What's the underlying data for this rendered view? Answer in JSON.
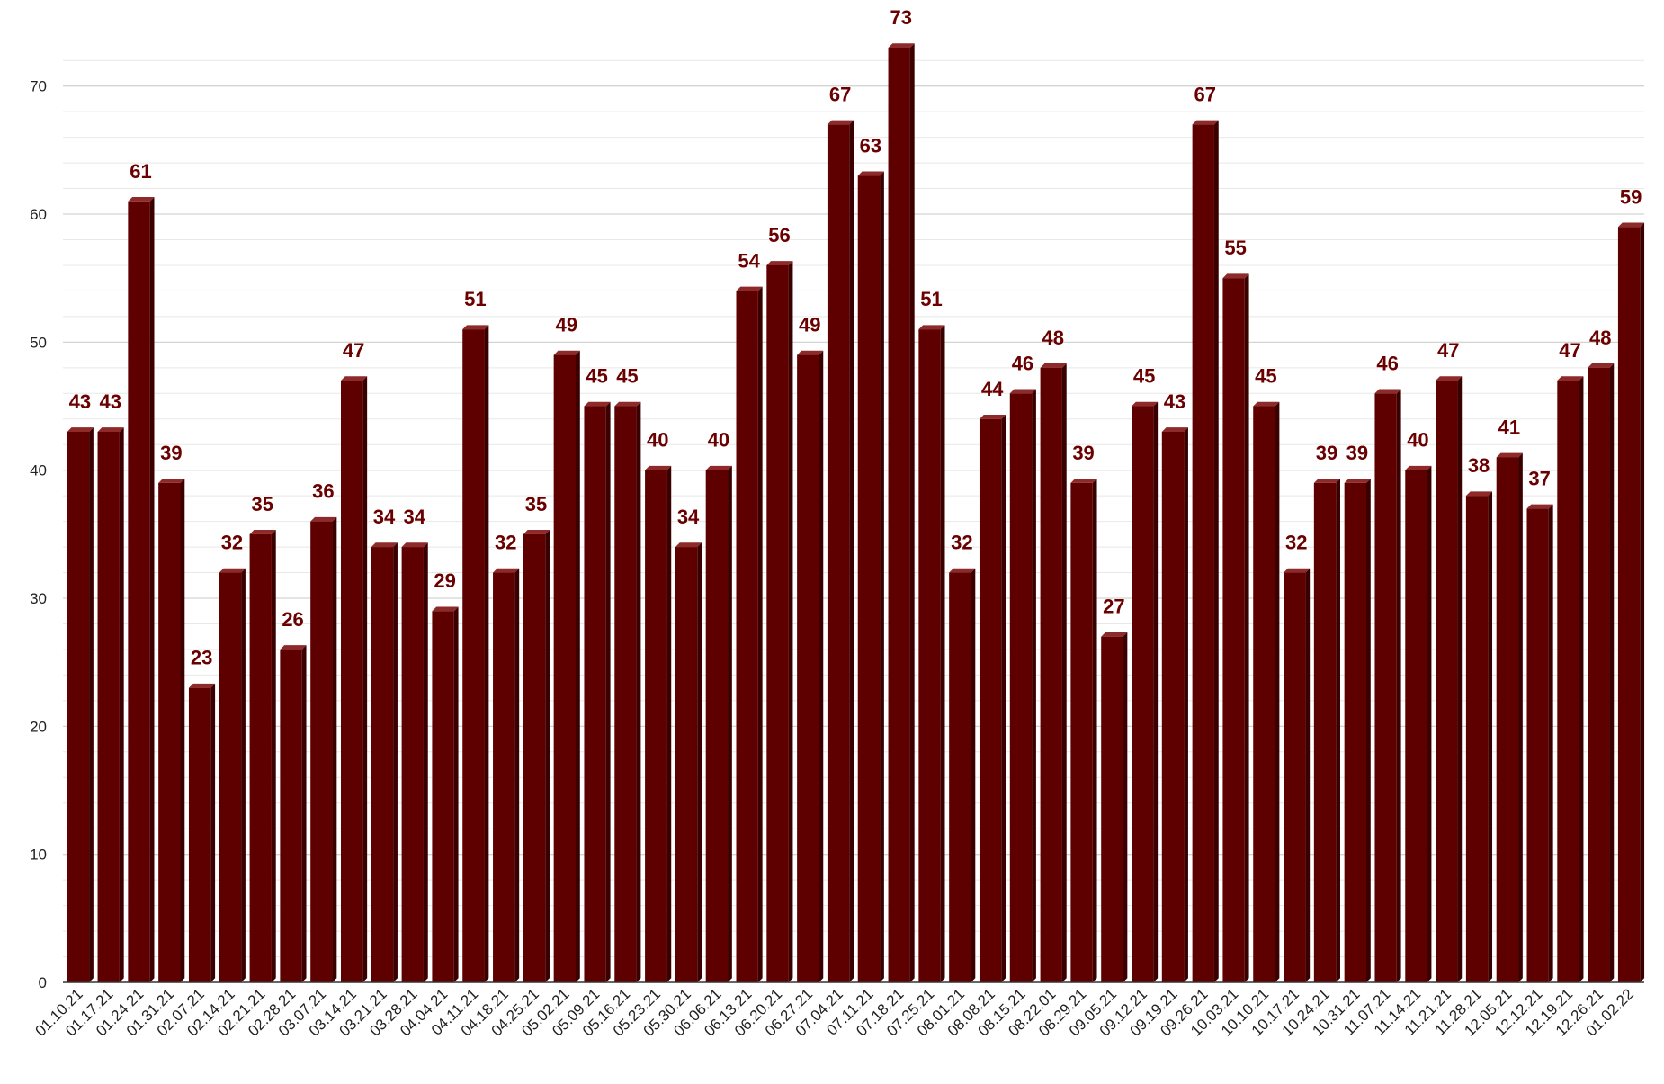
{
  "chart_data": {
    "type": "bar",
    "title": "",
    "xlabel": "",
    "ylabel": "",
    "ylim": [
      0,
      73
    ],
    "yticks": [
      0,
      10,
      20,
      30,
      40,
      50,
      60,
      70
    ],
    "grid": true,
    "legend": "none",
    "bar_style": "3d",
    "colors": {
      "bar_front": "#5e0000",
      "bar_top": "#8f2a2a",
      "bar_side": "#3a0000",
      "data_label": "#6b0000",
      "grid_major": "#d4d4d4",
      "grid_minor": "#e8e8e8",
      "axis": "#333333"
    },
    "categories": [
      "01.10.21",
      "01.17.21",
      "01.24.21",
      "01.31.21",
      "02.07.21",
      "02.14.21",
      "02.21.21",
      "02.28.21",
      "03.07.21",
      "03.14.21",
      "03.21.21",
      "03.28.21",
      "04.04.21",
      "04.11.21",
      "04.18.21",
      "04.25.21",
      "05.02.21",
      "05.09.21",
      "05.16.21",
      "05.23.21",
      "05.30.21",
      "06.06.21",
      "06.13.21",
      "06.20.21",
      "06.27.21",
      "07.04.21",
      "07.11.21",
      "07.18.21",
      "07.25.21",
      "08.01.21",
      "08.08.21",
      "08.15.21",
      "08.22.01",
      "08.29.21",
      "09.05.21",
      "09.12.21",
      "09.19.21",
      "09.26.21",
      "10.03.21",
      "10.10.21",
      "10.17.21",
      "10.24.21",
      "10.31.21",
      "11.07.21",
      "11.14.21",
      "11.21.21",
      "11.28.21",
      "12.05.21",
      "12.12.21",
      "12.19.21",
      "12.26.21",
      "01.02.22"
    ],
    "values": [
      43,
      43,
      61,
      39,
      23,
      32,
      35,
      26,
      36,
      47,
      34,
      34,
      29,
      51,
      32,
      35,
      49,
      45,
      45,
      40,
      34,
      40,
      54,
      56,
      49,
      67,
      63,
      73,
      51,
      32,
      44,
      46,
      48,
      39,
      27,
      45,
      43,
      67,
      55,
      45,
      32,
      39,
      39,
      46,
      40,
      47,
      38,
      41,
      37,
      47,
      48,
      59
    ]
  }
}
